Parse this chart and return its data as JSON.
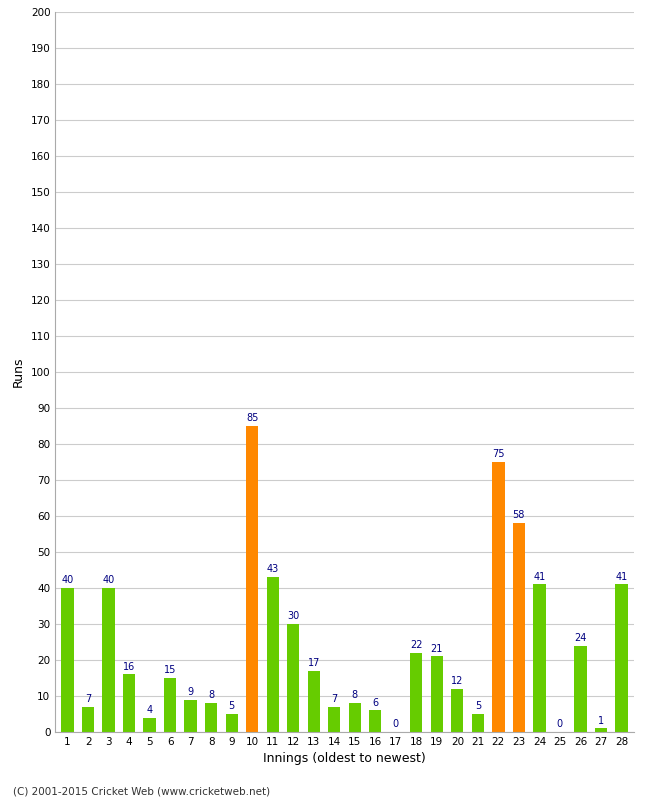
{
  "xlabel": "Innings (oldest to newest)",
  "ylabel": "Runs",
  "values": [
    40,
    7,
    40,
    16,
    4,
    15,
    9,
    8,
    5,
    85,
    43,
    30,
    17,
    7,
    8,
    6,
    0,
    22,
    21,
    12,
    5,
    75,
    58,
    41,
    0,
    24,
    1,
    41
  ],
  "colors": [
    "#66cc00",
    "#66cc00",
    "#66cc00",
    "#66cc00",
    "#66cc00",
    "#66cc00",
    "#66cc00",
    "#66cc00",
    "#66cc00",
    "#ff8800",
    "#66cc00",
    "#66cc00",
    "#66cc00",
    "#66cc00",
    "#66cc00",
    "#66cc00",
    "#66cc00",
    "#66cc00",
    "#66cc00",
    "#66cc00",
    "#66cc00",
    "#ff8800",
    "#ff8800",
    "#66cc00",
    "#66cc00",
    "#66cc00",
    "#66cc00",
    "#66cc00"
  ],
  "x_labels": [
    "1",
    "2",
    "3",
    "4",
    "5",
    "6",
    "7",
    "8",
    "9",
    "10",
    "11",
    "12",
    "13",
    "14",
    "15",
    "16",
    "17",
    "18",
    "19",
    "20",
    "21",
    "22",
    "23",
    "24",
    "25",
    "26",
    "27",
    "28"
  ],
  "ylim": [
    0,
    200
  ],
  "yticks": [
    0,
    10,
    20,
    30,
    40,
    50,
    60,
    70,
    80,
    90,
    100,
    110,
    120,
    130,
    140,
    150,
    160,
    170,
    180,
    190,
    200
  ],
  "label_color": "#000080",
  "footer": "(C) 2001-2015 Cricket Web (www.cricketweb.net)",
  "background_color": "#ffffff",
  "grid_color": "#cccccc",
  "bar_width": 0.6
}
